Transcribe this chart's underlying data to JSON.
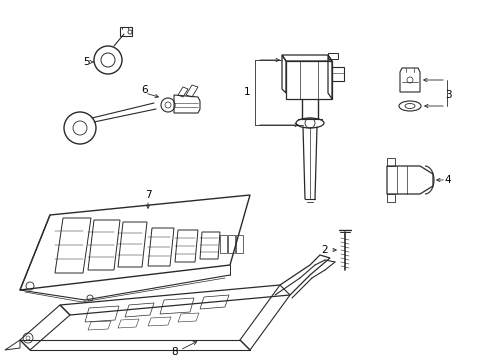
{
  "bg_color": "#ffffff",
  "line_color": "#2a2a2a",
  "label_color": "#000000",
  "fig_width": 4.9,
  "fig_height": 3.6,
  "dpi": 100,
  "lw": 0.7,
  "fontsize": 7.5
}
